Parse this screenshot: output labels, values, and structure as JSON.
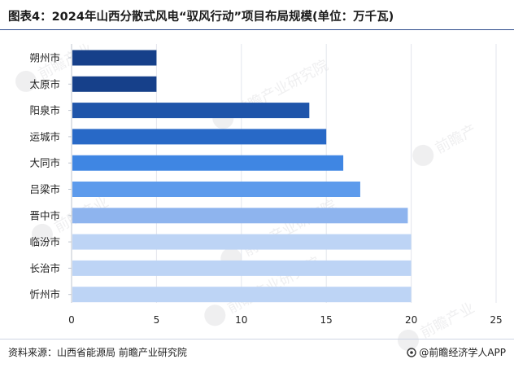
{
  "title": "图表4：2024年山西分散式风电“驭风行动”项目布局规模(单位：万千瓦)",
  "footer": {
    "source": "资料来源：山西省能源局 前瞻产业研究院",
    "brand": "@前瞻经济学人APP",
    "brand_icon": "qianzhan-logo-icon"
  },
  "watermark": {
    "text": "前瞻产业研究院"
  },
  "chart_data": {
    "type": "bar",
    "orientation": "horizontal",
    "categories": [
      "朔州市",
      "太原市",
      "阳泉市",
      "运城市",
      "大同市",
      "吕梁市",
      "晋中市",
      "临汾市",
      "长治市",
      "忻州市"
    ],
    "values": [
      5,
      5,
      14,
      15,
      16,
      17,
      19.8,
      20,
      20,
      20
    ],
    "colors": [
      "#16408a",
      "#16408a",
      "#1f55aa",
      "#2869c7",
      "#3f86e3",
      "#5d9bec",
      "#8eb4ee",
      "#bdd4f5",
      "#bdd4f5",
      "#bdd4f5"
    ],
    "xlim": [
      0,
      25
    ],
    "xticks": [
      "0",
      "5",
      "10",
      "15",
      "20",
      "25"
    ],
    "grid": true
  }
}
